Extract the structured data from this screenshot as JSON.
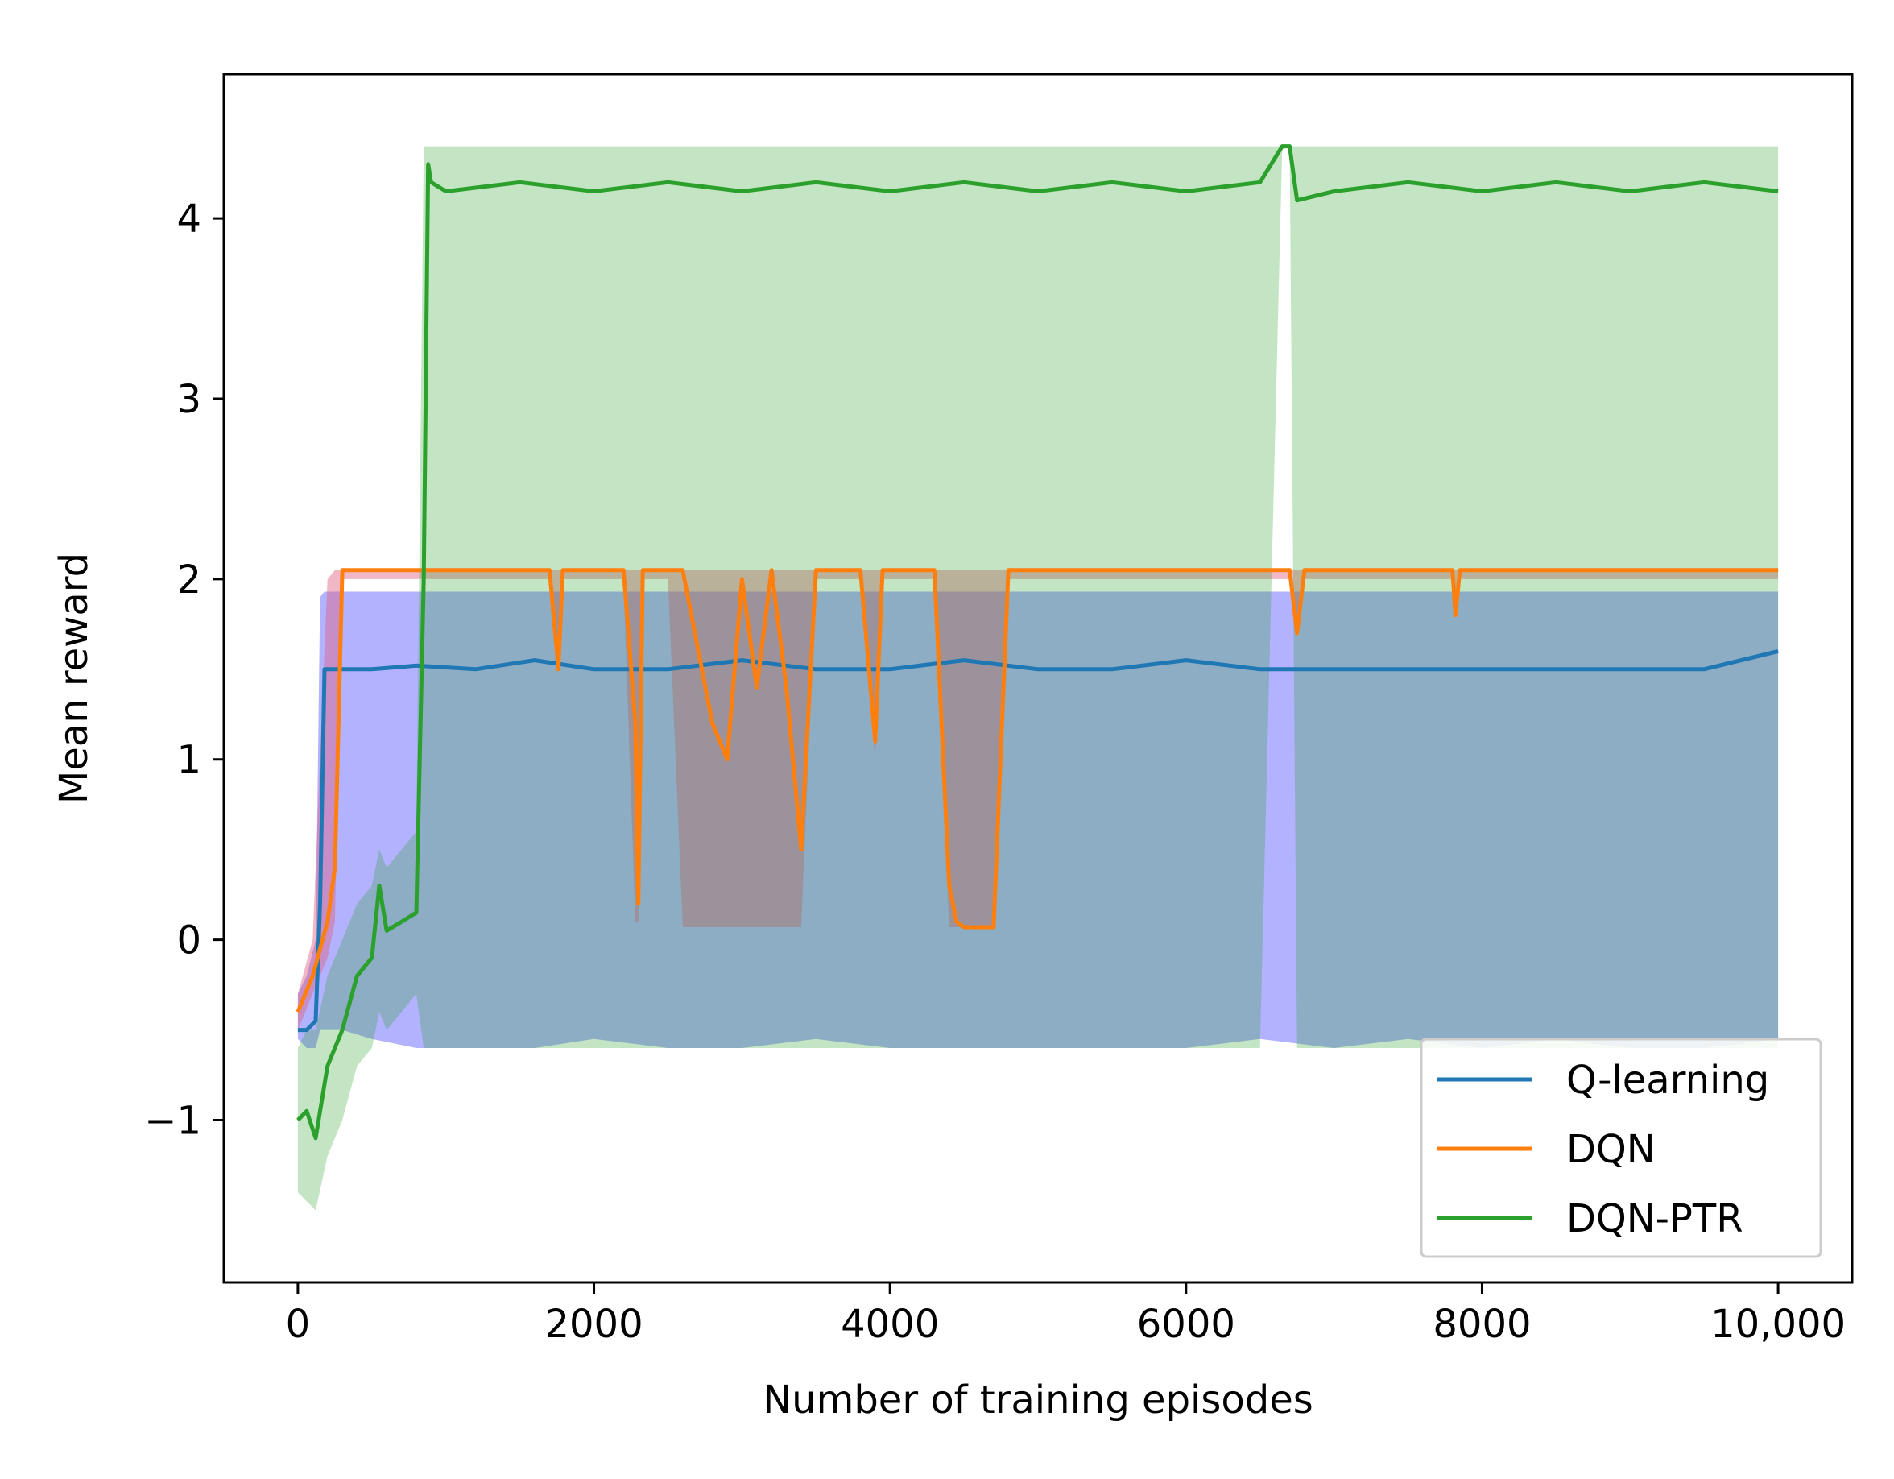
{
  "chart_data": {
    "type": "line",
    "title": "",
    "xlabel": "Number of training episodes",
    "ylabel": "Mean reward",
    "xlim": [
      -500,
      10500
    ],
    "ylim": [
      -1.9,
      4.8
    ],
    "grid": false,
    "legend_position": "bottom-right",
    "x_ticks": [
      {
        "value": 0,
        "label": "0"
      },
      {
        "value": 2000,
        "label": "2000"
      },
      {
        "value": 4000,
        "label": "4000"
      },
      {
        "value": 6000,
        "label": "6000"
      },
      {
        "value": 8000,
        "label": "8000"
      },
      {
        "value": 10000,
        "label": "10,000"
      }
    ],
    "y_ticks": [
      {
        "value": -1,
        "label": "−1"
      },
      {
        "value": 0,
        "label": "0"
      },
      {
        "value": 1,
        "label": "1"
      },
      {
        "value": 2,
        "label": "2"
      },
      {
        "value": 3,
        "label": "3"
      },
      {
        "value": 4,
        "label": "4"
      }
    ],
    "series": [
      {
        "name": "Q-learning",
        "color": "#1f77b4",
        "band_color": "#6666ff",
        "band_opacity": 0.5,
        "x": [
          0,
          60,
          120,
          150,
          180,
          300,
          500,
          800,
          1200,
          1600,
          2000,
          2500,
          3000,
          3500,
          4000,
          4500,
          5000,
          5500,
          6000,
          6500,
          7000,
          7500,
          8000,
          8500,
          9000,
          9500,
          10000
        ],
        "y": [
          -0.5,
          -0.5,
          -0.45,
          0.2,
          1.5,
          1.5,
          1.5,
          1.52,
          1.5,
          1.55,
          1.5,
          1.5,
          1.55,
          1.5,
          1.5,
          1.55,
          1.5,
          1.5,
          1.55,
          1.5,
          1.5,
          1.5,
          1.5,
          1.5,
          1.5,
          1.5,
          1.6
        ],
        "lower": [
          -0.55,
          -0.6,
          -0.6,
          -0.5,
          -0.5,
          -0.5,
          -0.55,
          -0.6,
          -0.6,
          -0.6,
          -0.55,
          -0.6,
          -0.6,
          -0.55,
          -0.6,
          -0.6,
          -0.6,
          -0.6,
          -0.6,
          -0.55,
          -0.6,
          -0.55,
          -0.6,
          -0.55,
          -0.6,
          -0.6,
          -0.55
        ],
        "upper": [
          -0.3,
          -0.2,
          0.0,
          1.9,
          1.93,
          1.93,
          1.93,
          1.93,
          1.93,
          1.93,
          1.93,
          1.93,
          1.93,
          1.93,
          1.93,
          1.93,
          1.93,
          1.93,
          1.93,
          1.93,
          1.93,
          1.93,
          1.93,
          1.93,
          1.93,
          1.93,
          1.93
        ]
      },
      {
        "name": "DQN",
        "color": "#ff7f0e",
        "band_color": "#e06080",
        "band_opacity": 0.45,
        "x": [
          0,
          100,
          200,
          250,
          300,
          1700,
          1760,
          1790,
          1850,
          2200,
          2280,
          2300,
          2330,
          2500,
          2600,
          2800,
          2900,
          3000,
          3100,
          3200,
          3300,
          3400,
          3500,
          3800,
          3900,
          3950,
          4000,
          4300,
          4400,
          4450,
          4500,
          4600,
          4700,
          4800,
          4900,
          6700,
          6750,
          6800,
          7800,
          7820,
          7850,
          10000
        ],
        "y": [
          -0.4,
          -0.2,
          0.1,
          0.4,
          2.05,
          2.05,
          1.5,
          2.05,
          2.05,
          2.05,
          1.2,
          0.2,
          2.05,
          2.05,
          2.05,
          1.2,
          1.0,
          2.0,
          1.4,
          2.05,
          1.4,
          0.5,
          2.05,
          2.05,
          1.1,
          2.05,
          2.05,
          2.05,
          0.3,
          0.1,
          0.07,
          0.07,
          0.07,
          2.05,
          2.05,
          2.05,
          1.7,
          2.05,
          2.05,
          1.8,
          2.05,
          2.05
        ],
        "lower": [
          -0.5,
          -0.3,
          -0.1,
          0.1,
          2.0,
          2.0,
          1.5,
          2.0,
          2.0,
          2.0,
          0.1,
          0.1,
          2.0,
          2.0,
          0.07,
          0.07,
          0.07,
          0.07,
          0.07,
          0.07,
          0.07,
          0.07,
          2.0,
          2.0,
          1.0,
          2.0,
          2.0,
          2.0,
          0.07,
          0.07,
          0.07,
          0.07,
          0.07,
          2.0,
          2.0,
          2.0,
          1.7,
          2.0,
          2.0,
          1.8,
          2.0,
          2.0
        ],
        "upper": [
          -0.3,
          0.0,
          2.0,
          2.05,
          2.05,
          2.05,
          2.05,
          2.05,
          2.05,
          2.05,
          2.05,
          2.05,
          2.05,
          2.05,
          2.05,
          2.05,
          2.05,
          2.05,
          2.05,
          2.05,
          2.05,
          2.05,
          2.05,
          2.05,
          2.05,
          2.05,
          2.05,
          2.05,
          2.05,
          2.05,
          2.05,
          2.05,
          2.05,
          2.05,
          2.05,
          2.05,
          2.05,
          2.05,
          2.05,
          2.05,
          2.05,
          2.05
        ]
      },
      {
        "name": "DQN-PTR",
        "color": "#2ca02c",
        "band_color": "#2ca02c",
        "band_opacity": 0.28,
        "x": [
          0,
          60,
          120,
          200,
          300,
          400,
          500,
          550,
          600,
          700,
          800,
          850,
          880,
          900,
          1000,
          1500,
          2000,
          2500,
          3000,
          3500,
          4000,
          4500,
          5000,
          5500,
          6000,
          6500,
          6650,
          6700,
          6750,
          7000,
          7500,
          8000,
          8500,
          9000,
          9500,
          10000
        ],
        "y": [
          -1.0,
          -0.95,
          -1.1,
          -0.7,
          -0.5,
          -0.2,
          -0.1,
          0.3,
          0.05,
          0.1,
          0.15,
          2.0,
          4.3,
          4.2,
          4.15,
          4.2,
          4.15,
          4.2,
          4.15,
          4.2,
          4.15,
          4.2,
          4.15,
          4.2,
          4.15,
          4.2,
          4.4,
          4.4,
          4.1,
          4.15,
          4.2,
          4.15,
          4.2,
          4.15,
          4.2,
          4.15
        ],
        "lower": [
          -1.4,
          -1.45,
          -1.5,
          -1.2,
          -1.0,
          -0.7,
          -0.6,
          -0.4,
          -0.5,
          -0.4,
          -0.3,
          -0.6,
          -0.6,
          -0.6,
          -0.6,
          -0.6,
          -0.6,
          -0.6,
          -0.6,
          -0.6,
          -0.6,
          -0.6,
          -0.6,
          -0.6,
          -0.6,
          -0.6,
          4.4,
          4.4,
          -0.6,
          -0.6,
          -0.6,
          -0.6,
          -0.6,
          -0.6,
          -0.6,
          -0.6
        ],
        "upper": [
          -0.6,
          -0.5,
          -0.5,
          -0.2,
          0.0,
          0.2,
          0.3,
          0.5,
          0.4,
          0.5,
          0.6,
          4.4,
          4.4,
          4.4,
          4.4,
          4.4,
          4.4,
          4.4,
          4.4,
          4.4,
          4.4,
          4.4,
          4.4,
          4.4,
          4.4,
          4.4,
          4.4,
          4.4,
          4.4,
          4.4,
          4.4,
          4.4,
          4.4,
          4.4,
          4.4,
          4.4
        ]
      }
    ]
  }
}
